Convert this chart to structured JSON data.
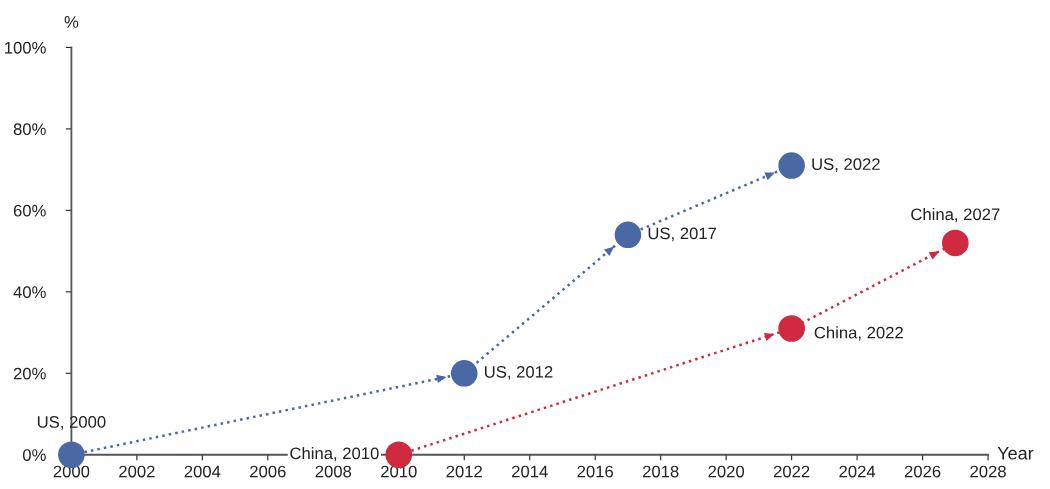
{
  "chart_data": {
    "type": "line",
    "ylabel": "%",
    "xlabel": "Year",
    "xlim": [
      2000,
      2028
    ],
    "xticks": [
      2000,
      2002,
      2004,
      2006,
      2008,
      2010,
      2012,
      2014,
      2016,
      2018,
      2020,
      2022,
      2024,
      2026,
      2028
    ],
    "ylim": [
      0,
      100
    ],
    "yticks": [
      {
        "value": 0,
        "label": "0%"
      },
      {
        "value": 20,
        "label": "20%"
      },
      {
        "value": 40,
        "label": "40%"
      },
      {
        "value": 60,
        "label": "60%"
      },
      {
        "value": 80,
        "label": "80%"
      },
      {
        "value": 100,
        "label": "100%"
      }
    ],
    "marker": "circle",
    "line_style": "dotted",
    "grid": false,
    "legend": false,
    "series": [
      {
        "color": "#4a69a4",
        "x": [
          2000,
          2012,
          2017,
          2022
        ],
        "values": [
          0,
          20,
          54,
          71
        ]
      },
      {
        "color": "#d1293f",
        "x": [
          2010,
          2022,
          2027
        ],
        "values": [
          0,
          31,
          52
        ]
      }
    ],
    "annotations": [
      {
        "text": "US, 2000",
        "x": 2000,
        "y": 0
      },
      {
        "text": "US, 2012",
        "x": 2012,
        "y": 20
      },
      {
        "text": "US, 2017",
        "x": 2017,
        "y": 54
      },
      {
        "text": "US, 2022",
        "x": 2022,
        "y": 71
      },
      {
        "text": "China, 2010",
        "x": 2010,
        "y": 0
      },
      {
        "text": "China, 2022",
        "x": 2022,
        "y": 31
      },
      {
        "text": "China, 2027",
        "x": 2027,
        "y": 52
      }
    ]
  }
}
